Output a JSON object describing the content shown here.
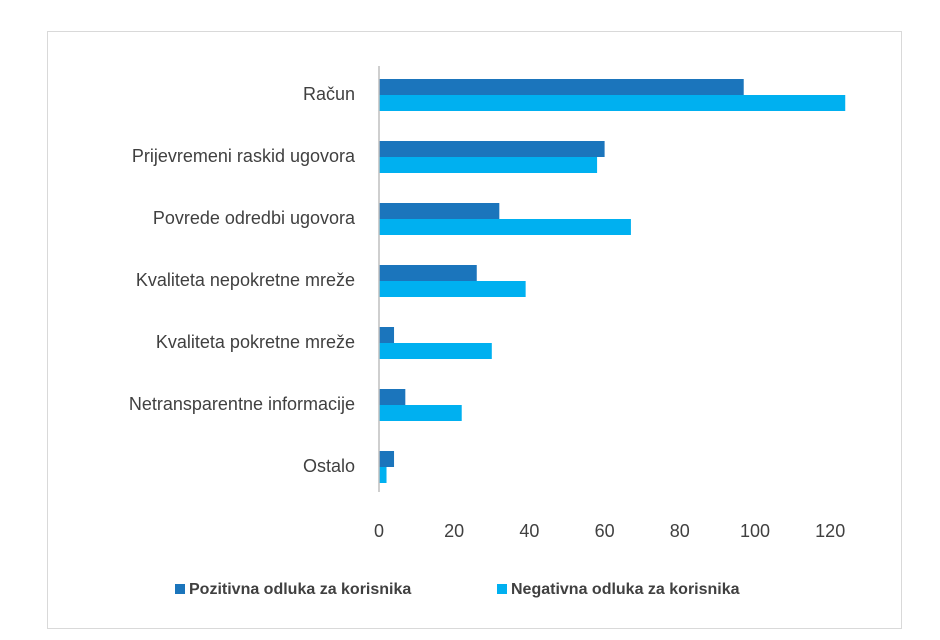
{
  "chart_data": {
    "type": "bar",
    "orientation": "horizontal",
    "categories": [
      "Račun",
      "Prijevremeni raskid ugovora",
      "Povrede odredbi ugovora",
      "Kvaliteta nepokretne mreže",
      "Kvaliteta pokretne mreže",
      "Netransparentne informacije",
      "Ostalo"
    ],
    "series": [
      {
        "name": "Pozitivna odluka za korisnika",
        "color": "#1b75bc",
        "values": [
          97,
          60,
          32,
          26,
          4,
          7,
          4
        ]
      },
      {
        "name": "Negativna odluka za korisnika",
        "color": "#00b0f0",
        "values": [
          124,
          58,
          67,
          39,
          30,
          22,
          2
        ]
      }
    ],
    "xticks": [
      "0",
      "20",
      "40",
      "60",
      "80",
      "100",
      "120"
    ],
    "xlim": [
      0,
      130
    ],
    "grid": false,
    "legend_position": "bottom"
  }
}
